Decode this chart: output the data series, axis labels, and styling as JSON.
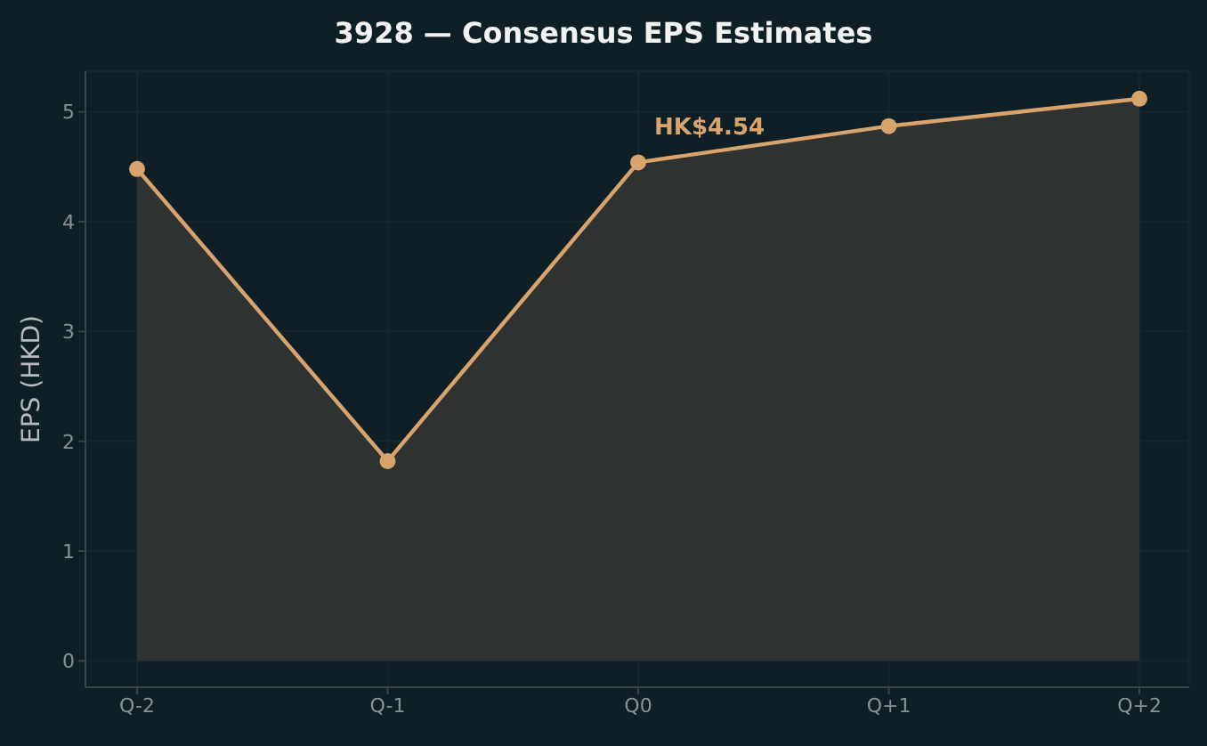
{
  "chart_data": {
    "type": "area",
    "title": "3928 — Consensus EPS Estimates",
    "ylabel": "EPS (HKD)",
    "categories": [
      "Q-2",
      "Q-1",
      "Q0",
      "Q+1",
      "Q+2"
    ],
    "series": [
      {
        "color": "#d9a46c",
        "values": [
          4.48,
          1.82,
          4.54,
          4.87,
          5.12
        ]
      }
    ],
    "ylim": [
      -0.24,
      5.37
    ],
    "yticks": [
      0,
      1,
      2,
      3,
      4,
      5
    ],
    "grid": true,
    "marker": "circle",
    "line_style": "solid",
    "annotations": [
      {
        "text": "HK$4.54",
        "x": "Q0",
        "y": 4.54
      }
    ]
  }
}
